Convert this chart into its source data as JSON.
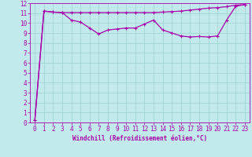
{
  "xlabel": "Windchill (Refroidissement éolien,°C)",
  "bg_color": "#c2eaec",
  "line_color": "#aa00aa",
  "grid_color": "#9ecfcf",
  "xlim": [
    -0.5,
    23.5
  ],
  "ylim": [
    0,
    12
  ],
  "yticks": [
    0,
    1,
    2,
    3,
    4,
    5,
    6,
    7,
    8,
    9,
    10,
    11,
    12
  ],
  "xticks": [
    0,
    1,
    2,
    3,
    4,
    5,
    6,
    7,
    8,
    9,
    10,
    11,
    12,
    13,
    14,
    15,
    16,
    17,
    18,
    19,
    20,
    21,
    22,
    23
  ],
  "line1_x": [
    0,
    1,
    2,
    3,
    4,
    5,
    6,
    7,
    8,
    9,
    10,
    11,
    12,
    13,
    14,
    15,
    16,
    17,
    18,
    19,
    20,
    21,
    22,
    23
  ],
  "line1_y": [
    0.2,
    11.2,
    11.1,
    11.05,
    10.3,
    10.1,
    9.5,
    8.9,
    9.3,
    9.4,
    9.5,
    9.5,
    9.9,
    10.3,
    9.3,
    9.0,
    8.7,
    8.6,
    8.65,
    8.6,
    8.7,
    10.3,
    11.7,
    11.85
  ],
  "line2_x": [
    0,
    1,
    2,
    3,
    4,
    5,
    6,
    7,
    8,
    9,
    10,
    11,
    12,
    13,
    14,
    15,
    16,
    17,
    18,
    19,
    20,
    21,
    22,
    23
  ],
  "line2_y": [
    0.2,
    11.2,
    11.1,
    11.05,
    11.05,
    11.05,
    11.05,
    11.05,
    11.05,
    11.05,
    11.05,
    11.05,
    11.05,
    11.05,
    11.1,
    11.15,
    11.2,
    11.3,
    11.4,
    11.5,
    11.55,
    11.65,
    11.8,
    11.85
  ],
  "xlabel_fontsize": 5.5,
  "tick_fontsize": 5.5,
  "linewidth": 0.9,
  "markersize": 3
}
